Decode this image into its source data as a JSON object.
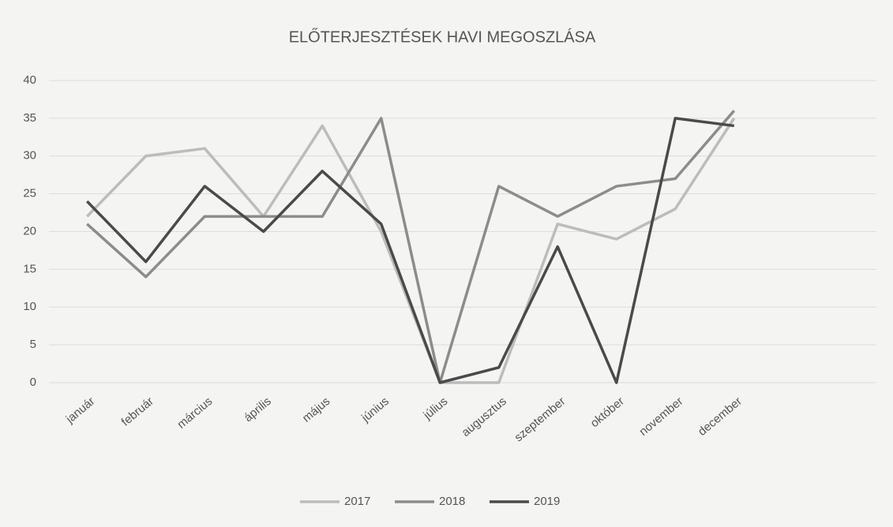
{
  "chart_data": {
    "type": "line",
    "title": "ELŐTERJESZTÉSEK HAVI MEGOSZLÁSA",
    "categories": [
      "január",
      "február",
      "március",
      "április",
      "május",
      "június",
      "július",
      "augusztus",
      "szeptember",
      "október",
      "november",
      "december"
    ],
    "series": [
      {
        "name": "2017",
        "color": "#bcbcbc",
        "values": [
          22,
          30,
          31,
          22,
          34,
          20,
          0,
          0,
          21,
          19,
          23,
          35
        ]
      },
      {
        "name": "2018",
        "color": "#8c8c8c",
        "values": [
          21,
          14,
          22,
          22,
          22,
          35,
          0,
          26,
          22,
          26,
          27,
          36
        ]
      },
      {
        "name": "2019",
        "color": "#4a4a4a",
        "values": [
          24,
          16,
          26,
          20,
          28,
          21,
          0,
          2,
          18,
          0,
          35,
          34
        ]
      }
    ],
    "ylim": [
      0,
      40
    ],
    "yticks": [
      0,
      5,
      10,
      15,
      20,
      25,
      30,
      35,
      40
    ],
    "grid": true,
    "legend": "bottom"
  }
}
